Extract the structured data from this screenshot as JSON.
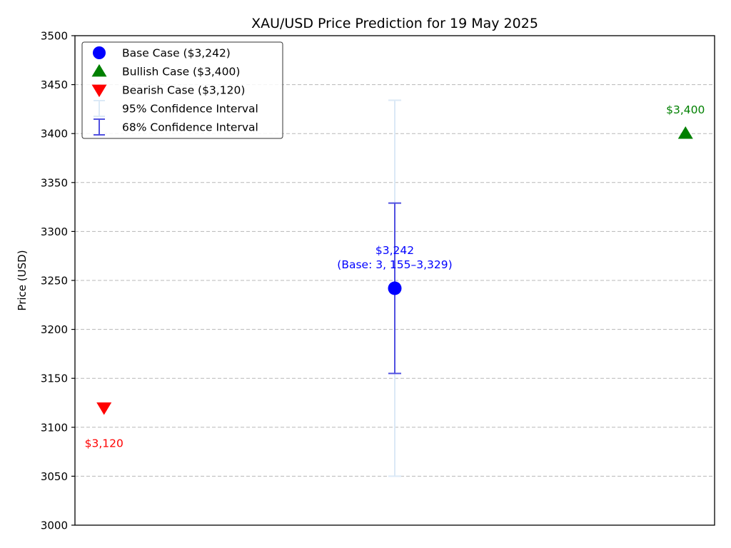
{
  "chart_data": {
    "type": "scatter",
    "title": "XAU/USD Price Prediction for 19 May 2025",
    "xlabel": "",
    "ylabel": "Price (USD)",
    "xlim": [
      -0.2,
      4.2
    ],
    "ylim": [
      3000,
      3500
    ],
    "yticks": [
      3000,
      3050,
      3100,
      3150,
      3200,
      3250,
      3300,
      3350,
      3400,
      3450,
      3500
    ],
    "grid": {
      "y": true,
      "x": false
    },
    "legend_position": "top-left",
    "points": [
      {
        "key": "bearish",
        "x": 0,
        "y": 3120,
        "marker": "triangle-down",
        "color": "#ff0000",
        "label_lines": [
          "$3,120"
        ],
        "label_position": "below"
      },
      {
        "key": "base",
        "x": 2,
        "y": 3242,
        "marker": "circle",
        "color": "#0000ff",
        "label_lines": [
          "$3,242",
          "(Base: 3, 155–3,329)"
        ],
        "label_position": "above",
        "intervals": [
          {
            "name": "95%",
            "low": 3050,
            "high": 3434,
            "color": "#dbe9f6",
            "cap": true
          },
          {
            "name": "68%",
            "low": 3155,
            "high": 3329,
            "color": "#5050e0",
            "cap": true
          }
        ]
      },
      {
        "key": "bullish",
        "x": 4,
        "y": 3400,
        "marker": "triangle-up",
        "color": "#008000",
        "label_lines": [
          "$3,400"
        ],
        "label_position": "above"
      }
    ],
    "legend": [
      {
        "label": "Base Case ($3,242)",
        "marker": "circle",
        "color": "#0000ff"
      },
      {
        "label": "Bullish Case ($3,400)",
        "marker": "triangle-up",
        "color": "#008000"
      },
      {
        "label": "Bearish Case ($3,120)",
        "marker": "triangle-down",
        "color": "#ff0000"
      },
      {
        "label": "95% Confidence Interval",
        "marker": "errorbar",
        "color": "#dbe9f6"
      },
      {
        "label": "68% Confidence Interval",
        "marker": "errorbar",
        "color": "#5050e0"
      }
    ]
  }
}
